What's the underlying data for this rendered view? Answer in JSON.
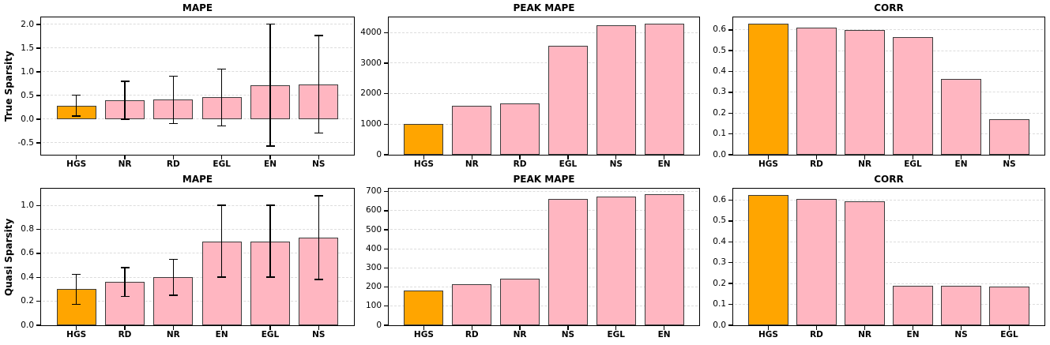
{
  "colors": {
    "highlight_bar": "#FFA500",
    "bar": "#FFB6C1",
    "bar_edge": "#3c3c3c",
    "error_bar": "#000000",
    "grid": "#dcdcdc",
    "spine": "#000000",
    "text": "#000000",
    "background": "#ffffff"
  },
  "chart_data": [
    {
      "type": "bar",
      "title": "MAPE",
      "ylabel": "True Sparsity",
      "categories": [
        "HGS",
        "NR",
        "RD",
        "EGL",
        "EN",
        "NS"
      ],
      "values": [
        0.29,
        0.4,
        0.41,
        0.46,
        0.72,
        0.74
      ],
      "errors": [
        0.22,
        0.4,
        0.5,
        0.6,
        1.29,
        1.03
      ],
      "ylim": [
        -0.75,
        2.15
      ],
      "ytick_values": [
        -0.5,
        0.0,
        0.5,
        1.0,
        1.5,
        2.0
      ],
      "ytick_labels": [
        "-0.5",
        "0.0",
        "0.5",
        "1.0",
        "1.5",
        "2.0"
      ],
      "highlight_index": 0,
      "grid": true,
      "legend": "none"
    },
    {
      "type": "bar",
      "title": "PEAK MAPE",
      "ylabel": "",
      "categories": [
        "HGS",
        "NR",
        "RD",
        "EGL",
        "NS",
        "EN"
      ],
      "values": [
        1020,
        1600,
        1690,
        3580,
        4240,
        4290
      ],
      "errors": null,
      "ylim": [
        0,
        4500
      ],
      "ytick_values": [
        0,
        1000,
        2000,
        3000,
        4000
      ],
      "ytick_labels": [
        "0",
        "1000",
        "2000",
        "3000",
        "4000"
      ],
      "highlight_index": 0,
      "grid": true,
      "legend": "none"
    },
    {
      "type": "bar",
      "title": "CORR",
      "ylabel": "",
      "categories": [
        "HGS",
        "RD",
        "NR",
        "EGL",
        "EN",
        "NS"
      ],
      "values": [
        0.63,
        0.61,
        0.6,
        0.565,
        0.363,
        0.17
      ],
      "errors": null,
      "ylim": [
        0,
        0.66
      ],
      "ytick_values": [
        0.0,
        0.1,
        0.2,
        0.3,
        0.4,
        0.5,
        0.6
      ],
      "ytick_labels": [
        "0.0",
        "0.1",
        "0.2",
        "0.3",
        "0.4",
        "0.5",
        "0.6"
      ],
      "highlight_index": 0,
      "grid": true,
      "legend": "none"
    },
    {
      "type": "bar",
      "title": "MAPE",
      "ylabel": "Quasi Sparsity",
      "categories": [
        "HGS",
        "RD",
        "NR",
        "EN",
        "EGL",
        "NS"
      ],
      "values": [
        0.3,
        0.36,
        0.4,
        0.7,
        0.7,
        0.73
      ],
      "errors": [
        0.125,
        0.12,
        0.15,
        0.3,
        0.3,
        0.35
      ],
      "ylim": [
        0,
        1.14
      ],
      "ytick_values": [
        0.0,
        0.2,
        0.4,
        0.6,
        0.8,
        1.0
      ],
      "ytick_labels": [
        "0.0",
        "0.2",
        "0.4",
        "0.6",
        "0.8",
        "1.0"
      ],
      "highlight_index": 0,
      "grid": true,
      "legend": "none"
    },
    {
      "type": "bar",
      "title": "PEAK MAPE",
      "ylabel": "",
      "categories": [
        "HGS",
        "RD",
        "NR",
        "NS",
        "EGL",
        "EN"
      ],
      "values": [
        180,
        215,
        245,
        660,
        672,
        688
      ],
      "errors": null,
      "ylim": [
        0,
        715
      ],
      "ytick_values": [
        0,
        100,
        200,
        300,
        400,
        500,
        600,
        700
      ],
      "ytick_labels": [
        "0",
        "100",
        "200",
        "300",
        "400",
        "500",
        "600",
        "700"
      ],
      "highlight_index": 0,
      "grid": true,
      "legend": "none"
    },
    {
      "type": "bar",
      "title": "CORR",
      "ylabel": "",
      "categories": [
        "HGS",
        "RD",
        "NR",
        "EN",
        "NS",
        "EGL"
      ],
      "values": [
        0.624,
        0.605,
        0.593,
        0.19,
        0.19,
        0.186
      ],
      "errors": null,
      "ylim": [
        0,
        0.655
      ],
      "ytick_values": [
        0.0,
        0.1,
        0.2,
        0.3,
        0.4,
        0.5,
        0.6
      ],
      "ytick_labels": [
        "0.0",
        "0.1",
        "0.2",
        "0.3",
        "0.4",
        "0.5",
        "0.6"
      ],
      "highlight_index": 0,
      "grid": true,
      "legend": "none"
    }
  ]
}
